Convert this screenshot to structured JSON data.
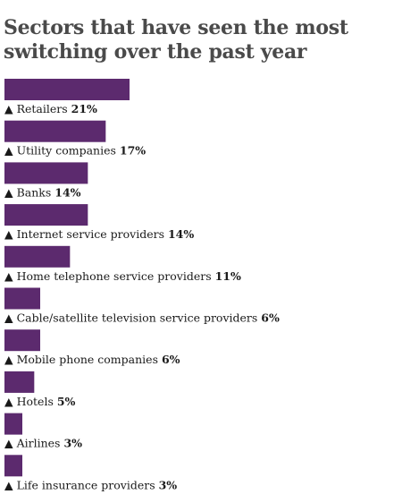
{
  "chart_data": {
    "type": "bar",
    "orientation": "horizontal",
    "title": "Sectors that have seen the most switching over the past year",
    "marker": "▲",
    "categories": [
      "Retailers",
      "Utility companies",
      "Banks",
      "Internet service providers",
      "Home telephone service providers",
      "Cable/satellite television service providers",
      "Mobile phone companies",
      "Hotels",
      "Airlines",
      "Life insurance providers"
    ],
    "values": [
      21,
      17,
      14,
      14,
      11,
      6,
      6,
      5,
      3,
      3
    ],
    "value_labels": [
      "21%",
      "17%",
      "14%",
      "14%",
      "11%",
      "6%",
      "6%",
      "5%",
      "3%",
      "3%"
    ],
    "unit": "%",
    "bar_color": "#5c2a6e",
    "grid": false,
    "legend": "none"
  }
}
